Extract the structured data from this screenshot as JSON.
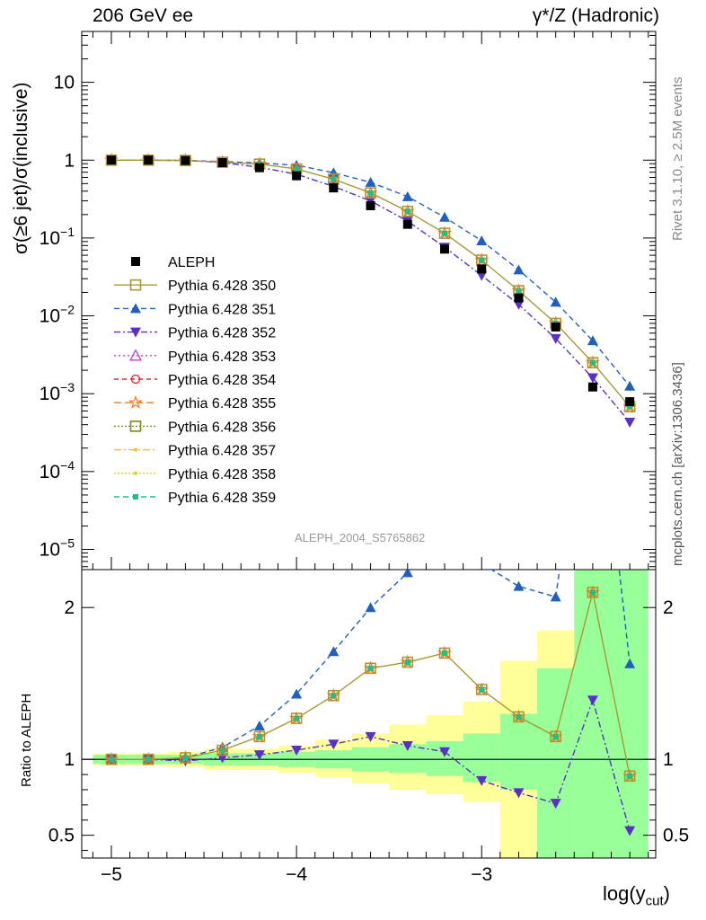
{
  "header": {
    "left": "206 GeV ee",
    "right": "γ*/Z (Hadronic)"
  },
  "side": {
    "rivet": "Rivet 3.1.10, ≥ 2.5M events",
    "mcplots": "mcplots.cern.ch [arXiv:1306.3436]"
  },
  "analysis_id": "ALEPH_2004_S5765862",
  "chart_data": [
    {
      "type": "line",
      "panel": "main",
      "ylabel": "σ(≥6 jet)/σ(inclusive)",
      "yscale": "log",
      "ylim": [
        5.5e-06,
        45
      ],
      "xlim": [
        -5.16,
        -2.06
      ],
      "yticks": [
        {
          "v": 1e-05,
          "base": "10",
          "exp": "−5"
        },
        {
          "v": 0.0001,
          "base": "10",
          "exp": "−4"
        },
        {
          "v": 0.001,
          "base": "10",
          "exp": "−3"
        },
        {
          "v": 0.01,
          "base": "10",
          "exp": "−2"
        },
        {
          "v": 0.1,
          "base": "10",
          "exp": "−1"
        },
        {
          "v": 1,
          "base": "1",
          "exp": ""
        },
        {
          "v": 10,
          "base": "10",
          "exp": ""
        }
      ],
      "x": [
        -5.0,
        -4.8,
        -4.6,
        -4.4,
        -4.2,
        -4.0,
        -3.8,
        -3.6,
        -3.4,
        -3.2,
        -3.0,
        -2.8,
        -2.6,
        -2.4,
        -2.2
      ],
      "data": {
        "name": "ALEPH",
        "y": [
          1.0,
          1.0,
          0.99,
          0.93,
          0.8,
          0.63,
          0.44,
          0.26,
          0.15,
          0.072,
          0.04,
          0.017,
          0.0072,
          0.00122,
          0.00079
        ]
      },
      "legend": [
        {
          "name": "ALEPH",
          "color": "#000000",
          "marker": "square",
          "dash": "none"
        },
        {
          "name": "Pythia 6.428 350",
          "color": "#a69a36",
          "marker": "open-square",
          "dash": "solid"
        },
        {
          "name": "Pythia 6.428 351",
          "color": "#1f5fbf",
          "marker": "triangle-up",
          "dash": "6,4"
        },
        {
          "name": "Pythia 6.428 352",
          "color": "#5b2fc9",
          "marker": "triangle-down",
          "dash": "7,3,2,3"
        },
        {
          "name": "Pythia 6.428 353",
          "color": "#c83cc8",
          "marker": "open-triangle",
          "dash": "2,3"
        },
        {
          "name": "Pythia 6.428 354",
          "color": "#e8222e",
          "marker": "open-circle",
          "dash": "5,4"
        },
        {
          "name": "Pythia 6.428 355",
          "color": "#f07a1a",
          "marker": "open-star",
          "dash": "8,4"
        },
        {
          "name": "Pythia 6.428 356",
          "color": "#7a8a1a",
          "marker": "open-square",
          "dash": "2,2"
        },
        {
          "name": "Pythia 6.428 357",
          "color": "#f2c21d",
          "marker": "dot",
          "dash": "8,3,2,3"
        },
        {
          "name": "Pythia 6.428 358",
          "color": "#d7d21a",
          "marker": "dot",
          "dash": "2,2"
        },
        {
          "name": "Pythia 6.428 359",
          "color": "#1fbf8a",
          "marker": "small-square",
          "dash": "6,4"
        }
      ],
      "series": [
        {
          "name": "Pythia 6.428 350",
          "y": [
            1.0,
            1.0,
            0.99,
            0.94,
            0.89,
            0.77,
            0.57,
            0.38,
            0.22,
            0.115,
            0.052,
            0.021,
            0.008,
            0.0025,
            0.00068
          ]
        },
        {
          "name": "Pythia 6.428 351",
          "y": [
            1.0,
            1.0,
            0.99,
            0.96,
            0.92,
            0.86,
            0.69,
            0.52,
            0.34,
            0.185,
            0.092,
            0.039,
            0.015,
            0.0048,
            0.00125
          ]
        },
        {
          "name": "Pythia 6.428 352",
          "y": [
            1.0,
            1.0,
            0.99,
            0.93,
            0.81,
            0.66,
            0.46,
            0.3,
            0.165,
            0.076,
            0.033,
            0.014,
            0.0051,
            0.0016,
            0.00043
          ]
        }
      ]
    },
    {
      "type": "line",
      "panel": "ratio",
      "ylabel": "Ratio to ALEPH",
      "ylim": [
        0.35,
        2.25
      ],
      "xlim": [
        -5.16,
        -2.06
      ],
      "yticks": [
        0.5,
        1,
        2
      ],
      "xticks": [
        -5,
        -4,
        -3
      ],
      "xlabel": "log(y",
      "xlabel_sub": "cut",
      "xlabel_close": ")",
      "x": [
        -5.0,
        -4.8,
        -4.6,
        -4.4,
        -4.2,
        -4.0,
        -3.8,
        -3.6,
        -3.4,
        -3.2,
        -3.0,
        -2.8,
        -2.6,
        -2.4,
        -2.2
      ],
      "band_edges": [
        -5.1,
        -4.9,
        -4.7,
        -4.5,
        -4.3,
        -4.1,
        -3.9,
        -3.7,
        -3.5,
        -3.3,
        -3.1,
        -2.9,
        -2.7,
        -2.5,
        -2.3,
        -2.1
      ],
      "band_yellow": [
        [
          0.96,
          1.04
        ],
        [
          0.96,
          1.04
        ],
        [
          0.95,
          1.05
        ],
        [
          0.93,
          1.07
        ],
        [
          0.93,
          1.07
        ],
        [
          0.91,
          1.09
        ],
        [
          0.88,
          1.13
        ],
        [
          0.84,
          1.17
        ],
        [
          0.8,
          1.23
        ],
        [
          0.77,
          1.29
        ],
        [
          0.72,
          1.38
        ],
        [
          0.3,
          1.65
        ],
        [
          0.46,
          1.85
        ],
        [
          0.3,
          2.3
        ],
        [
          0.3,
          2.3
        ]
      ],
      "band_green": [
        [
          0.97,
          1.03
        ],
        [
          0.97,
          1.03
        ],
        [
          0.97,
          1.03
        ],
        [
          0.96,
          1.04
        ],
        [
          0.96,
          1.04
        ],
        [
          0.95,
          1.05
        ],
        [
          0.94,
          1.06
        ],
        [
          0.92,
          1.08
        ],
        [
          0.91,
          1.1
        ],
        [
          0.89,
          1.12
        ],
        [
          0.85,
          1.17
        ],
        [
          0.8,
          1.3
        ],
        [
          0.3,
          1.6
        ],
        [
          0.3,
          2.3
        ],
        [
          0.3,
          2.3
        ]
      ],
      "series": [
        {
          "name": "Pythia 6.428 350",
          "y": [
            1.0,
            1.0,
            1.01,
            1.06,
            1.15,
            1.27,
            1.42,
            1.6,
            1.64,
            1.7,
            1.46,
            1.28,
            1.15,
            2.1,
            0.89
          ]
        },
        {
          "name": "Pythia 6.428 351",
          "y": [
            1.0,
            1.0,
            1.01,
            1.08,
            1.22,
            1.43,
            1.71,
            2.0,
            2.23,
            2.55,
            2.29,
            2.14,
            2.07,
            3.8,
            1.63
          ]
        },
        {
          "name": "Pythia 6.428 352",
          "y": [
            1.0,
            1.0,
            0.99,
            1.01,
            1.03,
            1.06,
            1.1,
            1.15,
            1.09,
            1.05,
            0.86,
            0.78,
            0.71,
            1.39,
            0.53
          ]
        }
      ]
    }
  ]
}
